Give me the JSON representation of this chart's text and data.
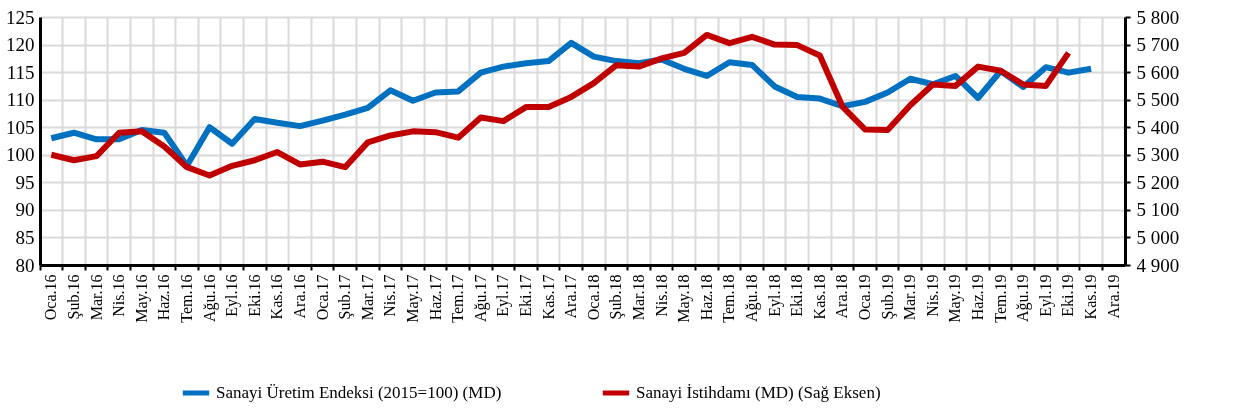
{
  "chart_data": {
    "type": "line",
    "categories": [
      "Oca.16",
      "Şub.16",
      "Mar.16",
      "Nis.16",
      "May.16",
      "Haz.16",
      "Tem.16",
      "Ağu.16",
      "Eyl.16",
      "Eki.16",
      "Kas.16",
      "Ara.16",
      "Oca.17",
      "Şub.17",
      "Mar.17",
      "Nis.17",
      "May.17",
      "Haz.17",
      "Tem.17",
      "Ağu.17",
      "Eyl.17",
      "Eki.17",
      "Kas.17",
      "Ara.17",
      "Oca.18",
      "Şub.18",
      "Mar.18",
      "Nis.18",
      "May.18",
      "Haz.18",
      "Tem.18",
      "Ağu.18",
      "Eyl.18",
      "Eki.18",
      "Kas.18",
      "Ara.18",
      "Oca.19",
      "Şub.19",
      "Mar.19",
      "Nis.19",
      "May.19",
      "Haz.19",
      "Tem.19",
      "Ağu.19",
      "Eyl.19",
      "Eki.19",
      "Kas.19",
      "Ara.19"
    ],
    "series": [
      {
        "name": "Sanayi Üretim Endeksi (2015=100) (MD)",
        "color": "#0070c0",
        "values": [
          103,
          104,
          102.8,
          102.8,
          104.5,
          104,
          98,
          105,
          102,
          106.5,
          105.8,
          105.2,
          106.2,
          107.3,
          108.5,
          111.7,
          109.8,
          111.3,
          111.5,
          114.9,
          116,
          116.6,
          117,
          120.3,
          117.8,
          117,
          116.6,
          117.3,
          115.6,
          114.3,
          116.8,
          116.3,
          112.4,
          110.5,
          110.2,
          108.8,
          109.6,
          111.3,
          113.8,
          112.8,
          114.3,
          110.3,
          115.2,
          112.3,
          115.9,
          114.9,
          115.6,
          null
        ]
      },
      {
        "name": "Sanayi İstihdamı (MD) (Sağ Eksen)",
        "color": "#c00000",
        "axis": "y2",
        "values": [
          5300,
          5280,
          5295,
          5380,
          5385,
          5330,
          5255,
          5225,
          5260,
          5280,
          5310,
          5265,
          5275,
          5255,
          5345,
          5370,
          5385,
          5382,
          5362,
          5435,
          5422,
          5473,
          5473,
          5510,
          5560,
          5625,
          5620,
          5650,
          5670,
          5735,
          5705,
          5728,
          5700,
          5698,
          5660,
          5475,
          5392,
          5390,
          5480,
          5555,
          5550,
          5620,
          5605,
          5555,
          5550,
          5670,
          null,
          null
        ]
      }
    ],
    "ylim": [
      80,
      125
    ],
    "yticks": [
      80,
      85,
      90,
      95,
      100,
      105,
      110,
      115,
      120,
      125
    ],
    "y2lim": [
      4900,
      5800
    ],
    "y2ticks": [
      {
        "value": 4900,
        "label": "4 900"
      },
      {
        "value": 5000,
        "label": "5 000"
      },
      {
        "value": 5100,
        "label": "5 100"
      },
      {
        "value": 5200,
        "label": "5 200"
      },
      {
        "value": 5300,
        "label": "5 300"
      },
      {
        "value": 5400,
        "label": "5 400"
      },
      {
        "value": 5500,
        "label": "5 500"
      },
      {
        "value": 5600,
        "label": "5 600"
      },
      {
        "value": 5700,
        "label": "5 700"
      },
      {
        "value": 5800,
        "label": "5 800"
      }
    ],
    "grid": true,
    "legend": "bottom",
    "line_style": "solid",
    "marker": "none"
  }
}
